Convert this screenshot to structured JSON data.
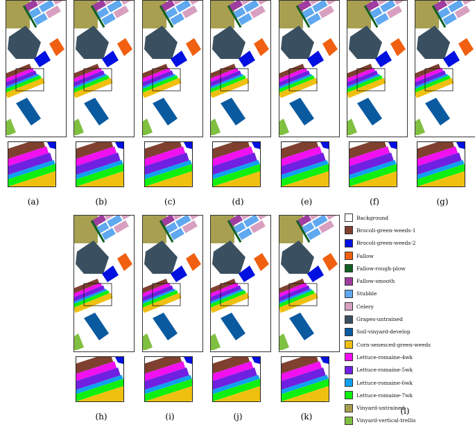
{
  "panels": [
    {
      "id": "a",
      "label": "(a)"
    },
    {
      "id": "b",
      "label": "(b)"
    },
    {
      "id": "c",
      "label": "(c)"
    },
    {
      "id": "d",
      "label": "(d)"
    },
    {
      "id": "e",
      "label": "(e)"
    },
    {
      "id": "f",
      "label": "(f)"
    },
    {
      "id": "g",
      "label": "(g)"
    },
    {
      "id": "h",
      "label": "(h)"
    },
    {
      "id": "i",
      "label": "(i)"
    },
    {
      "id": "j",
      "label": "(j)"
    },
    {
      "id": "k",
      "label": "(k)"
    }
  ],
  "legend_caption": "(l)",
  "legend": [
    {
      "label": "Background",
      "color": "#ffffff"
    },
    {
      "label": "Brocoli-green-weeds-1",
      "color": "#7f4030"
    },
    {
      "label": "Brocoli-green-weeds-2",
      "color": "#0010e0"
    },
    {
      "label": "Fallow",
      "color": "#f06010"
    },
    {
      "label": "Fallow-rough-plow",
      "color": "#106020"
    },
    {
      "label": "Fallow-smooth",
      "color": "#a03ea0"
    },
    {
      "label": "Stubble",
      "color": "#60a8f0"
    },
    {
      "label": "Celery",
      "color": "#d8a0c0"
    },
    {
      "label": "Grapes-untrained",
      "color": "#3a5060"
    },
    {
      "label": "Soil-vinyard-develop",
      "color": "#0a5aa0"
    },
    {
      "label": "Corn-senesced-green-weeds",
      "color": "#f0c010"
    },
    {
      "label": "Lettuce-romaine-4wk",
      "color": "#f010f0"
    },
    {
      "label": "Lettuce-romaine-5wk",
      "color": "#7020e0"
    },
    {
      "label": "Lettuce-romaine-6wk",
      "color": "#10a0f0"
    },
    {
      "label": "Lettuce-romaine-7wk",
      "color": "#10f010"
    },
    {
      "label": "Vinyard-untrained",
      "color": "#a8a050"
    },
    {
      "label": "Vinyard-vertical-trellis",
      "color": "#80c040"
    }
  ]
}
